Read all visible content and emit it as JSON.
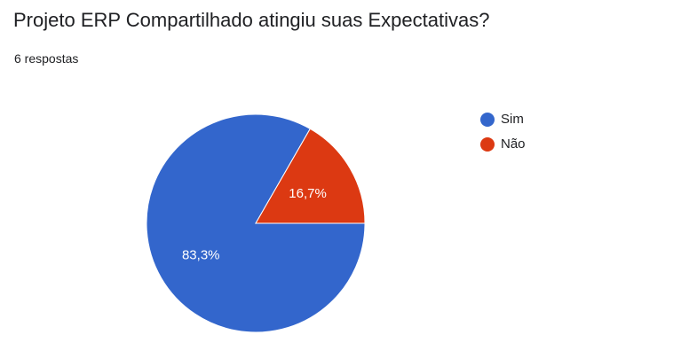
{
  "question": {
    "title": "Projeto ERP Compartilhado atingiu suas Expectativas?",
    "response_count": "6 respostas"
  },
  "chart_data": {
    "type": "pie",
    "slices": [
      {
        "label": "Sim",
        "value": 83.3,
        "display": "83,3%",
        "color": "#3366cc"
      },
      {
        "label": "Não",
        "value": 16.7,
        "display": "16,7%",
        "color": "#dc3912"
      }
    ],
    "legend_position": "right"
  }
}
